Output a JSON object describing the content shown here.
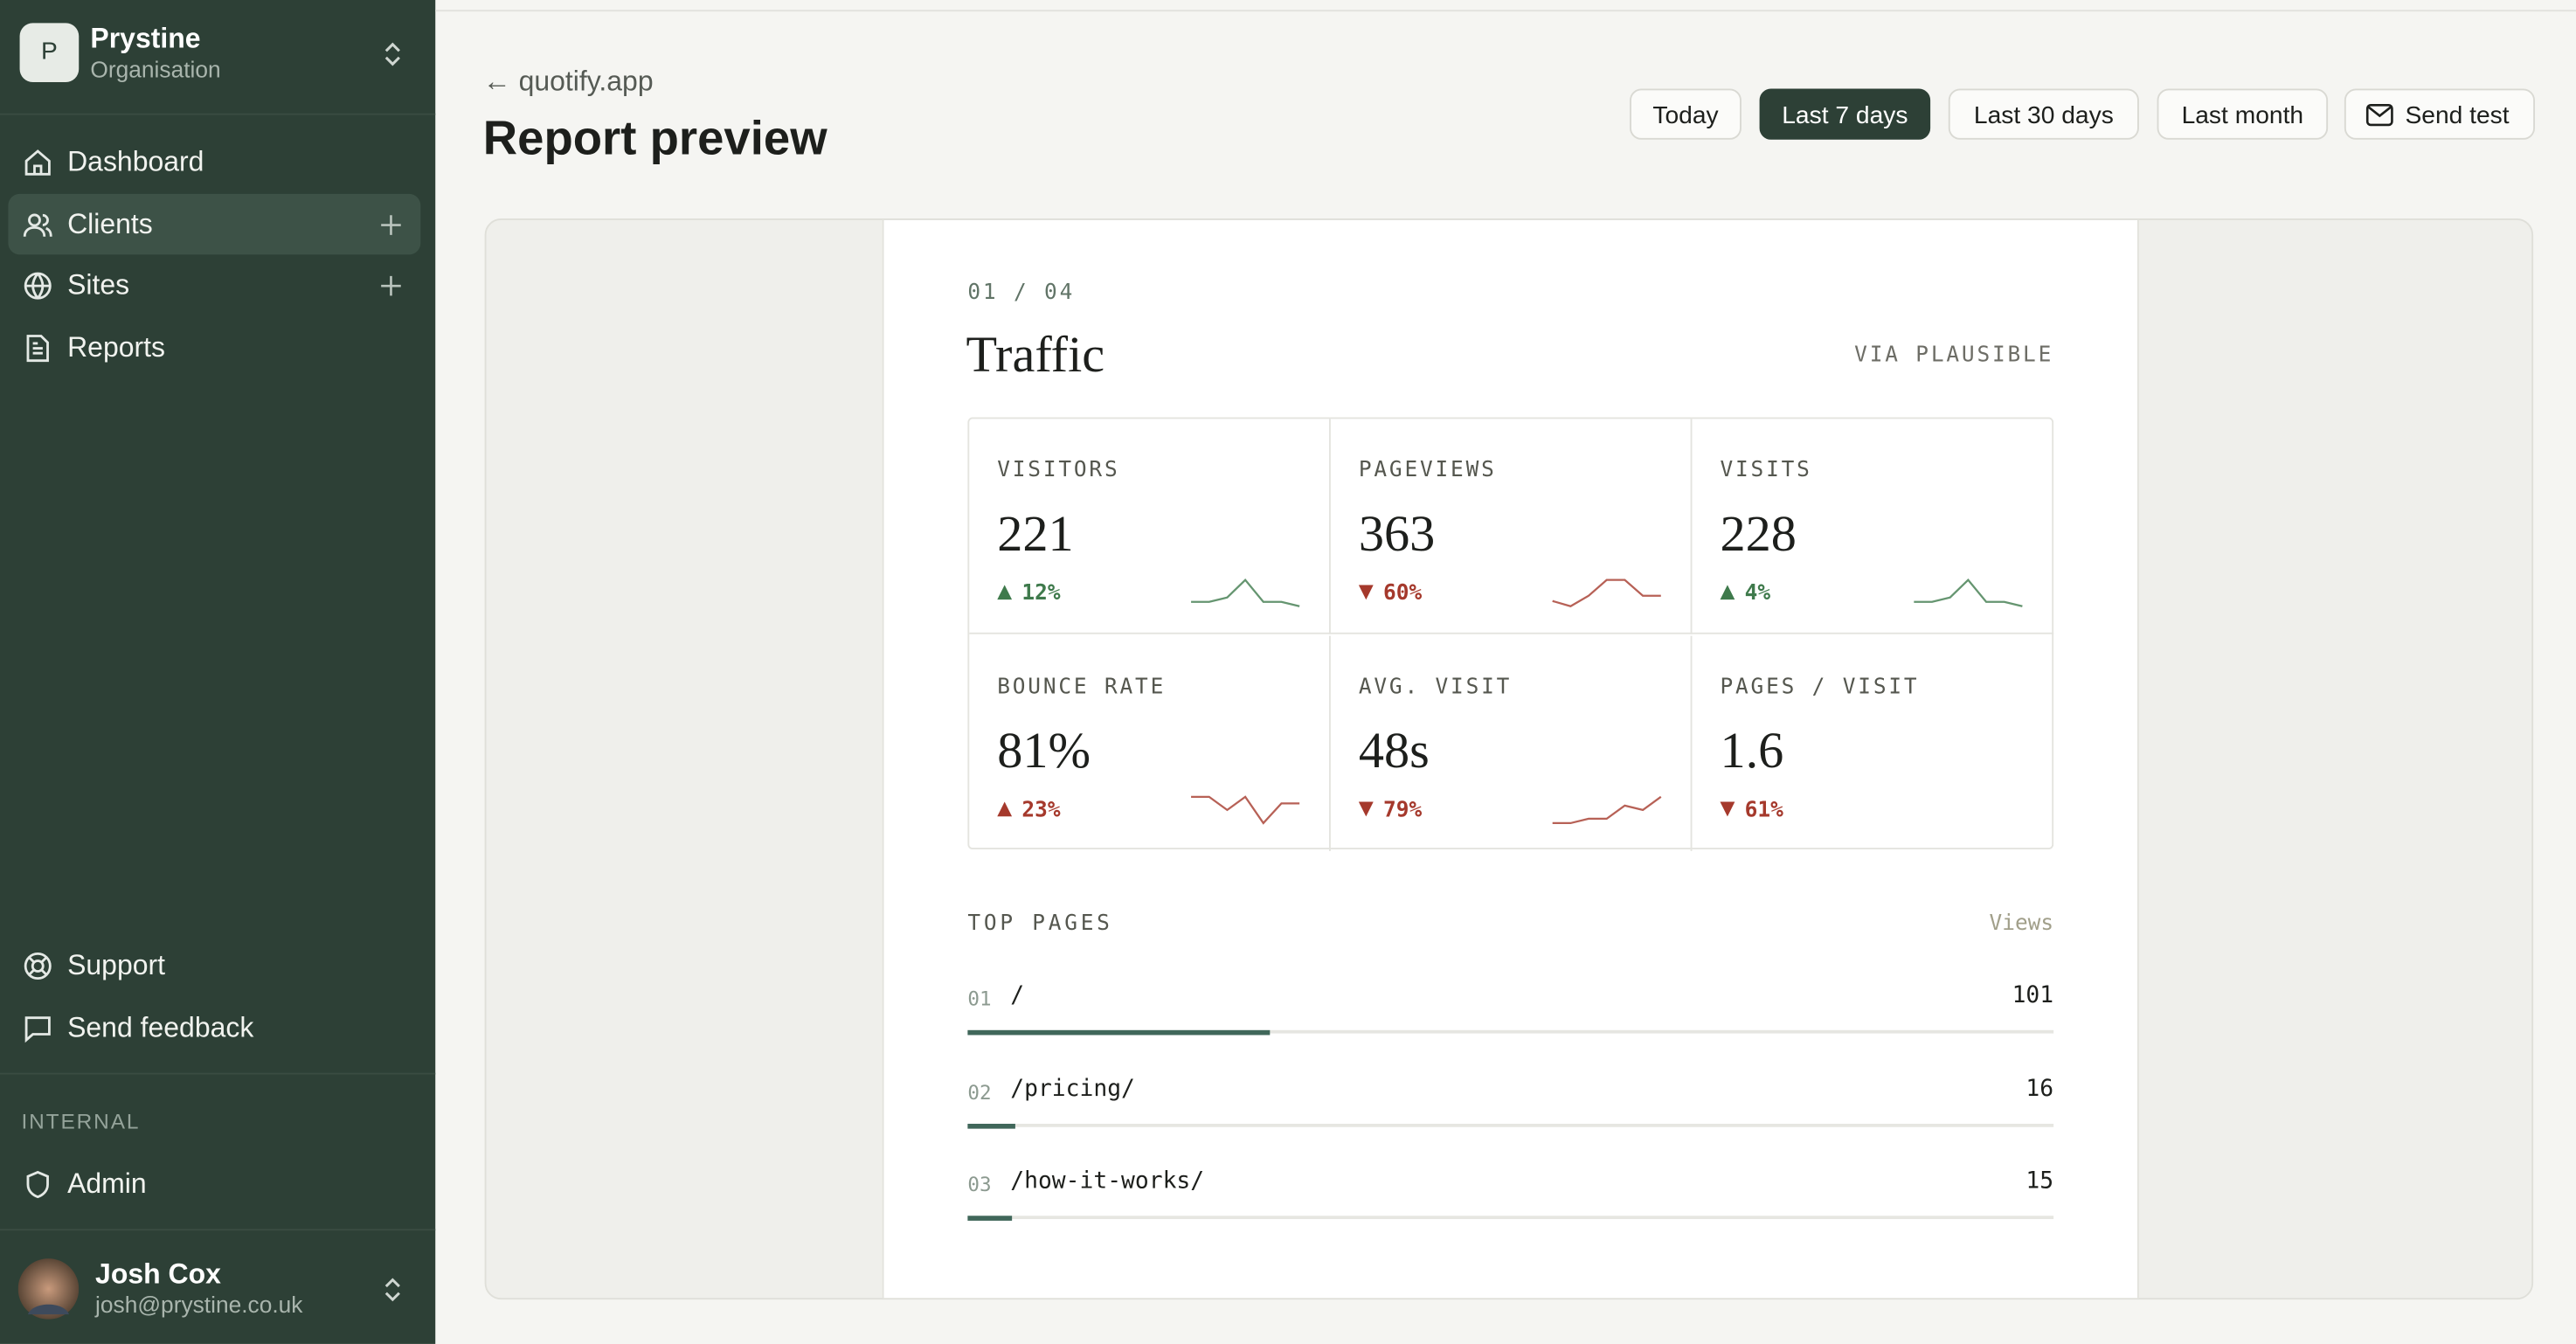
{
  "sidebar": {
    "org": {
      "initial": "P",
      "name": "Prystine",
      "subtitle": "Organisation"
    },
    "nav": [
      "Dashboard",
      "Clients",
      "Sites",
      "Reports"
    ],
    "active": 1,
    "footer_nav": [
      "Support",
      "Send feedback"
    ],
    "section": "INTERNAL",
    "admin": "Admin",
    "user": {
      "name": "Josh Cox",
      "email": "josh@prystine.co.uk"
    }
  },
  "header": {
    "back": "← quotify.app",
    "title": "Report preview",
    "ranges": [
      "Today",
      "Last 7 days",
      "Last 30 days",
      "Last month"
    ],
    "selected": 1,
    "send": "Send test"
  },
  "report": {
    "step": "01 / 04",
    "title": "Traffic",
    "source": "VIA PLAUSIBLE",
    "metrics": [
      {
        "label": "VISITORS",
        "value": 221,
        "change": "12%",
        "direction": "up",
        "color": "#3f7a4c",
        "spark": [
          1,
          1,
          2,
          6,
          1,
          1,
          0
        ]
      },
      {
        "label": "PAGEVIEWS",
        "value": 363,
        "change": "60%",
        "direction": "down",
        "color": "#a5392c",
        "spark": [
          1,
          0,
          2,
          5,
          5,
          2,
          2
        ]
      },
      {
        "label": "VISITS",
        "value": 228,
        "change": "4%",
        "direction": "up",
        "color": "#3f7a4c",
        "spark": [
          1,
          1,
          2,
          6,
          1,
          1,
          0
        ]
      },
      {
        "label": "BOUNCE RATE",
        "value": "81%",
        "change": "23%",
        "direction": "up",
        "color": "#a5392c",
        "spark": [
          5,
          5,
          3,
          5,
          1,
          4,
          4
        ]
      },
      {
        "label": "AVG. VISIT",
        "value": "48s",
        "change": "79%",
        "direction": "down",
        "color": "#a5392c",
        "spark": [
          0,
          0,
          1,
          1,
          4,
          3,
          6
        ]
      },
      {
        "label": "PAGES / VISIT",
        "value": 1.6,
        "change": "61%",
        "direction": "down",
        "color": "#a5392c"
      }
    ],
    "top_pages": {
      "title": "TOP PAGES",
      "column": "Views",
      "rows": [
        {
          "rank": "01",
          "path": "/",
          "views": 101
        },
        {
          "rank": "02",
          "path": "/pricing/",
          "views": 16
        },
        {
          "rank": "03",
          "path": "/how-it-works/",
          "views": 15
        }
      ]
    }
  }
}
